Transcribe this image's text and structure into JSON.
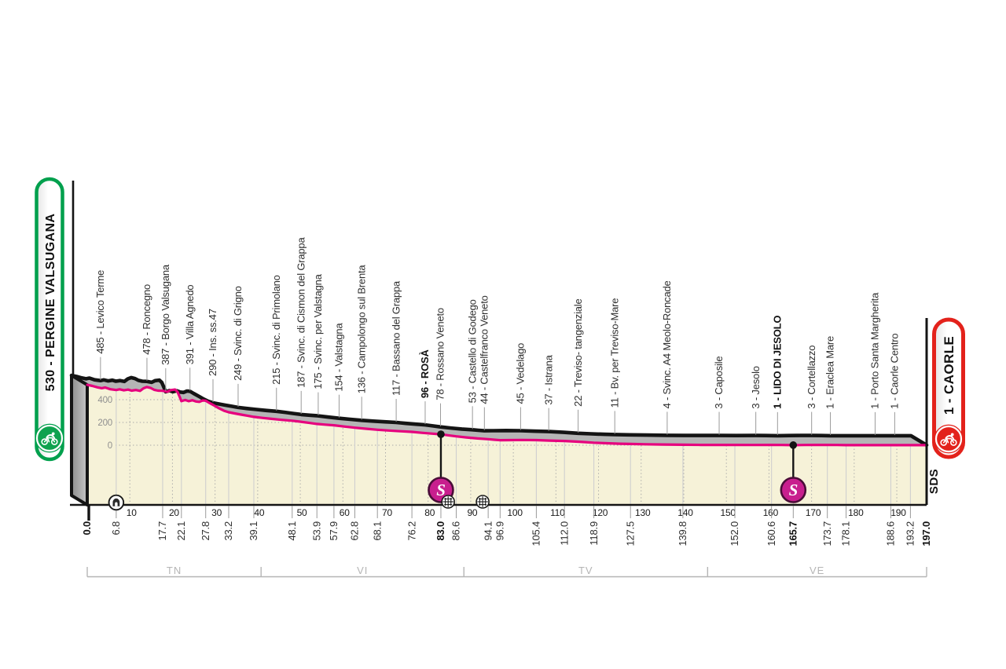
{
  "start_badge": {
    "label": "530 - PERGINE VALSUGANA",
    "border_color": "#00A04D",
    "circle_color": "#0FA24F",
    "text_color": "#111111"
  },
  "finish_badge": {
    "label": "1 - CAORLE",
    "border_color": "#E3221B",
    "circle_color": "#E3221B",
    "text_color": "#111111"
  },
  "logo_sds": {
    "text": "SDS"
  },
  "chart_data": {
    "type": "area",
    "x_unit": "km",
    "y_unit": "m",
    "x_range": [
      0,
      197
    ],
    "y_ticks": [
      0,
      200,
      400
    ],
    "x_decade_ticks": [
      10,
      20,
      30,
      40,
      50,
      60,
      70,
      80,
      90,
      100,
      110,
      120,
      130,
      140,
      150,
      160,
      170,
      180,
      190
    ],
    "start": {
      "km": 0.0,
      "km_label": "0.0",
      "elevation": 530,
      "name": "Pergine Valsugana",
      "bold": true
    },
    "finish": {
      "km": 197.0,
      "km_label": "197.0",
      "elevation": 1,
      "name": "Caorle",
      "bold": true
    },
    "waypoints": [
      {
        "km": 6.8,
        "km_label": "6.8",
        "elevation": 485,
        "name": "Levico Terme",
        "bold": false
      },
      {
        "km": 17.7,
        "km_label": "17.7",
        "elevation": 478,
        "name": "Roncegno",
        "bold": false
      },
      {
        "km": 22.1,
        "km_label": "22.1",
        "elevation": 387,
        "name": "Borgo Valsugana",
        "bold": false
      },
      {
        "km": 27.8,
        "km_label": "27.8",
        "elevation": 391,
        "name": "Villa Agnedo",
        "bold": false
      },
      {
        "km": 33.2,
        "km_label": "33.2",
        "elevation": 290,
        "name": "Ins. ss.47",
        "bold": false
      },
      {
        "km": 39.1,
        "km_label": "39.1",
        "elevation": 249,
        "name": "Svinc. di Grigno",
        "bold": false
      },
      {
        "km": 48.1,
        "km_label": "48.1",
        "elevation": 215,
        "name": "Svinc. di Primolano",
        "bold": false
      },
      {
        "km": 53.9,
        "km_label": "53.9",
        "elevation": 187,
        "name": "Svinc. di Cismon del Grappa",
        "bold": false
      },
      {
        "km": 57.9,
        "km_label": "57.9",
        "elevation": 175,
        "name": "Svinc. per Valstagna",
        "bold": false
      },
      {
        "km": 62.8,
        "km_label": "62.8",
        "elevation": 154,
        "name": "Valstagna",
        "bold": false
      },
      {
        "km": 68.1,
        "km_label": "68.1",
        "elevation": 136,
        "name": "Campolongo sul Brenta",
        "bold": false
      },
      {
        "km": 76.2,
        "km_label": "76.2",
        "elevation": 117,
        "name": "Bassano del Grappa",
        "bold": false
      },
      {
        "km": 83.0,
        "km_label": "83.0",
        "elevation": 96,
        "name": "ROSÀ",
        "bold": true
      },
      {
        "km": 86.6,
        "km_label": "86.6",
        "elevation": 78,
        "name": "Rossano Veneto",
        "bold": false
      },
      {
        "km": 94.1,
        "km_label": "94.1",
        "elevation": 53,
        "name": "Castello di Godego",
        "bold": false
      },
      {
        "km": 96.9,
        "km_label": "96.9",
        "elevation": 44,
        "name": "Castelfranco Veneto",
        "bold": false
      },
      {
        "km": 105.4,
        "km_label": "105.4",
        "elevation": 45,
        "name": "Vedelago",
        "bold": false
      },
      {
        "km": 112.0,
        "km_label": "112.0",
        "elevation": 37,
        "name": "Istrana",
        "bold": false
      },
      {
        "km": 118.9,
        "km_label": "118.9",
        "elevation": 22,
        "name": "Treviso- tangenziale",
        "bold": false
      },
      {
        "km": 127.5,
        "km_label": "127.5",
        "elevation": 11,
        "name": "Bv. per Treviso-Mare",
        "bold": false
      },
      {
        "km": 139.8,
        "km_label": "139.8",
        "elevation": 4,
        "name": "Svinc. A4  Meolo-Roncade",
        "bold": false
      },
      {
        "km": 152.0,
        "km_label": "152.0",
        "elevation": 3,
        "name": "Caposile",
        "bold": false
      },
      {
        "km": 160.6,
        "km_label": "160.6",
        "elevation": 3,
        "name": "Jesolo",
        "bold": false
      },
      {
        "km": 165.7,
        "km_label": "165.7",
        "elevation": 1,
        "name": "LIDO DI JESOLO",
        "bold": true
      },
      {
        "km": 173.7,
        "km_label": "173.7",
        "elevation": 3,
        "name": "Cortellazzo",
        "bold": false
      },
      {
        "km": 178.1,
        "km_label": "178.1",
        "elevation": 1,
        "name": "Eraclea Mare",
        "bold": false
      },
      {
        "km": 188.6,
        "km_label": "188.6",
        "elevation": 1,
        "name": "Porto Santa Margherita",
        "bold": false
      },
      {
        "km": 193.2,
        "km_label": "193.2",
        "elevation": 1,
        "name": "Caorle Centro",
        "bold": false
      }
    ],
    "sprints": [
      {
        "km": 83.0
      },
      {
        "km": 165.7
      }
    ],
    "tunnels": [
      {
        "km": 6.8
      }
    ],
    "level_crossings": [
      {
        "km": 84.7
      },
      {
        "km": 92.8
      }
    ],
    "provinces": [
      {
        "code": "TN",
        "from_km": 0,
        "to_km": 40.8
      },
      {
        "code": "VI",
        "from_km": 40.8,
        "to_km": 88.4
      },
      {
        "code": "TV",
        "from_km": 88.4,
        "to_km": 145.6
      },
      {
        "code": "VE",
        "from_km": 145.6,
        "to_km": 197
      }
    ],
    "profile_points": [
      [
        0,
        530
      ],
      [
        1.2,
        521
      ],
      [
        2.4,
        508
      ],
      [
        3.4,
        501
      ],
      [
        4.2,
        507
      ],
      [
        5.4,
        492
      ],
      [
        6.8,
        485
      ],
      [
        7.6,
        491
      ],
      [
        8.6,
        482
      ],
      [
        9.6,
        488
      ],
      [
        10.4,
        479
      ],
      [
        11.4,
        485
      ],
      [
        12.4,
        477
      ],
      [
        13.2,
        500
      ],
      [
        14.0,
        511
      ],
      [
        14.9,
        503
      ],
      [
        15.7,
        487
      ],
      [
        16.6,
        479
      ],
      [
        17.7,
        478
      ],
      [
        18.8,
        470
      ],
      [
        19.6,
        484
      ],
      [
        20.6,
        489
      ],
      [
        21.2,
        468
      ],
      [
        21.7,
        425
      ],
      [
        22.1,
        387
      ],
      [
        23.0,
        397
      ],
      [
        23.8,
        387
      ],
      [
        24.7,
        395
      ],
      [
        25.5,
        384
      ],
      [
        26.3,
        381
      ],
      [
        27.1,
        393
      ],
      [
        27.8,
        391
      ],
      [
        28.7,
        371
      ],
      [
        29.8,
        348
      ],
      [
        31.0,
        323
      ],
      [
        32.1,
        303
      ],
      [
        33.2,
        290
      ],
      [
        34.6,
        279
      ],
      [
        36.1,
        269
      ],
      [
        37.6,
        259
      ],
      [
        39.1,
        249
      ],
      [
        41.1,
        240
      ],
      [
        43.2,
        232
      ],
      [
        45.6,
        223
      ],
      [
        48.1,
        215
      ],
      [
        50.1,
        206
      ],
      [
        52.1,
        196
      ],
      [
        53.9,
        187
      ],
      [
        55.9,
        181
      ],
      [
        57.9,
        175
      ],
      [
        60.3,
        164
      ],
      [
        62.8,
        154
      ],
      [
        65.4,
        145
      ],
      [
        68.1,
        136
      ],
      [
        70.8,
        129
      ],
      [
        73.5,
        123
      ],
      [
        76.2,
        117
      ],
      [
        78.5,
        109
      ],
      [
        80.8,
        102
      ],
      [
        83.0,
        96
      ],
      [
        84.8,
        87
      ],
      [
        86.6,
        78
      ],
      [
        89.0,
        68
      ],
      [
        91.6,
        59
      ],
      [
        94.1,
        53
      ],
      [
        95.5,
        48
      ],
      [
        96.9,
        44
      ],
      [
        99.0,
        45
      ],
      [
        102.0,
        46
      ],
      [
        105.4,
        45
      ],
      [
        108.5,
        41
      ],
      [
        112.0,
        37
      ],
      [
        115.5,
        30
      ],
      [
        118.9,
        22
      ],
      [
        122.0,
        17
      ],
      [
        125.0,
        13
      ],
      [
        127.5,
        11
      ],
      [
        131.0,
        8
      ],
      [
        135.0,
        6
      ],
      [
        139.8,
        4
      ],
      [
        144.0,
        3
      ],
      [
        148.0,
        3
      ],
      [
        152.0,
        3
      ],
      [
        156.0,
        2
      ],
      [
        160.6,
        3
      ],
      [
        163.0,
        2
      ],
      [
        165.7,
        1
      ],
      [
        168.5,
        2
      ],
      [
        171.0,
        3
      ],
      [
        173.7,
        3
      ],
      [
        176.0,
        2
      ],
      [
        178.1,
        1
      ],
      [
        182.0,
        1
      ],
      [
        186.0,
        1
      ],
      [
        188.6,
        1
      ],
      [
        191.0,
        1
      ],
      [
        193.2,
        1
      ],
      [
        197.0,
        1
      ]
    ],
    "colors": {
      "line": "#E6007E",
      "fill": "#F6F2D8",
      "band": "#B5B5B5",
      "edge": "#141414",
      "grid": "#A8A8A8",
      "waypoint_line": "#CFCFCF",
      "tick": "#9A9A9A",
      "province": "#B5B5B5",
      "sprint_fill": "#C81F8E",
      "sprint_ring": "#4A0D38"
    }
  }
}
